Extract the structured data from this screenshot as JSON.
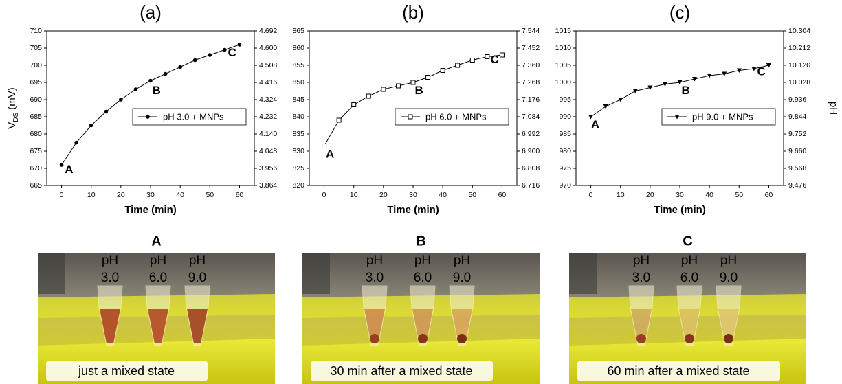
{
  "chart_data": [
    {
      "type": "line",
      "title": "(a)",
      "x_label": "Time (min)",
      "y_label": [
        "V",
        "DS",
        " (mV)"
      ],
      "x": [
        0,
        5,
        10,
        15,
        20,
        25,
        30,
        35,
        40,
        45,
        50,
        55,
        60
      ],
      "xlim": [
        -5,
        65
      ],
      "xticks": [
        0,
        10,
        20,
        30,
        40,
        50,
        60
      ],
      "ylim": [
        665,
        710
      ],
      "yticks": [
        665,
        670,
        675,
        680,
        685,
        690,
        695,
        700,
        705,
        710
      ],
      "y2lim": [
        3.864,
        4.692
      ],
      "y2ticks": [
        3.864,
        3.956,
        4.048,
        {
          "value": 4.14,
          "label": "4.140"
        },
        4.232,
        4.324,
        4.416,
        4.508,
        {
          "value": 4.6,
          "label": "4.600"
        },
        4.692
      ],
      "legend": "right",
      "series": [
        {
          "name": "pH 3.0 + MNPs",
          "color": "#000000",
          "marker": "circle",
          "values": [
            671,
            677.5,
            682.5,
            686.5,
            690,
            693,
            695.5,
            697.5,
            699.5,
            701.5,
            703,
            704.5,
            706
          ]
        }
      ],
      "annotations": [
        {
          "text": "A",
          "x": 2.5,
          "y": 669.5
        },
        {
          "text": "B",
          "x": 32,
          "y": 692.5
        },
        {
          "text": "C",
          "x": 57.5,
          "y": 703.5
        }
      ]
    },
    {
      "type": "line",
      "title": "(b)",
      "x_label": "Time (min)",
      "x": [
        0,
        5,
        10,
        15,
        20,
        25,
        30,
        35,
        40,
        45,
        50,
        55,
        60
      ],
      "xlim": [
        -5,
        65
      ],
      "xticks": [
        0,
        10,
        20,
        30,
        40,
        50,
        60
      ],
      "ylim": [
        820,
        865
      ],
      "yticks": [
        820,
        825,
        830,
        835,
        840,
        845,
        850,
        855,
        860,
        865
      ],
      "y2lim": [
        6.716,
        7.544
      ],
      "y2ticks": [
        6.716,
        6.808,
        {
          "value": 6.9,
          "label": "6.900"
        },
        6.992,
        7.084,
        7.176,
        7.268,
        {
          "value": 7.36,
          "label": "7.360"
        },
        7.452,
        7.544
      ],
      "legend": "right",
      "series": [
        {
          "name": "pH 6.0 + MNPs",
          "color": "#000000",
          "marker": "square-open",
          "values": [
            831.5,
            839,
            843.5,
            846,
            848,
            849,
            850,
            851.5,
            853.5,
            855,
            856.5,
            857.5,
            858
          ]
        }
      ],
      "annotations": [
        {
          "text": "A",
          "x": 2,
          "y": 829
        },
        {
          "text": "B",
          "x": 32,
          "y": 847.5
        },
        {
          "text": "C",
          "x": 57.5,
          "y": 856.5
        }
      ]
    },
    {
      "type": "line",
      "title": "(c)",
      "x_label": "Time (min)",
      "y2_label": "pH",
      "x": [
        0,
        5,
        10,
        15,
        20,
        25,
        30,
        35,
        40,
        45,
        50,
        55,
        60
      ],
      "xlim": [
        -5,
        65
      ],
      "xticks": [
        0,
        10,
        20,
        30,
        40,
        50,
        60
      ],
      "ylim": [
        970,
        1015
      ],
      "yticks": [
        970,
        975,
        980,
        985,
        990,
        995,
        1000,
        1005,
        1010,
        1015
      ],
      "y2lim": [
        9.476,
        10.304
      ],
      "y2ticks": [
        9.476,
        9.568,
        {
          "value": 9.66,
          "label": "9.660"
        },
        9.752,
        9.844,
        9.936,
        10.028,
        {
          "value": 10.12,
          "label": "10.120"
        },
        10.212,
        10.304
      ],
      "legend": "right",
      "series": [
        {
          "name": "pH 9.0 + MNPs",
          "color": "#000000",
          "marker": "triangle-down",
          "values": [
            990,
            993,
            995,
            997.5,
            998.5,
            999.5,
            1000,
            1001,
            1002,
            1002.5,
            1003.5,
            1004,
            1005
          ]
        }
      ],
      "annotations": [
        {
          "text": "A",
          "x": 1.5,
          "y": 987.5
        },
        {
          "text": "B",
          "x": 32,
          "y": 997.5
        },
        {
          "text": "C",
          "x": 57.5,
          "y": 1003
        }
      ]
    }
  ],
  "photos": [
    {
      "title": "A",
      "tubes": [
        [
          "pH",
          "3.0"
        ],
        [
          "pH",
          "6.0"
        ],
        [
          "pH",
          "9.0"
        ]
      ],
      "caption": "just a mixed state"
    },
    {
      "title": "B",
      "tubes": [
        [
          "pH",
          "3.0"
        ],
        [
          "pH",
          "6.0"
        ],
        [
          "pH",
          "9.0"
        ]
      ],
      "caption": "30 min after a mixed state"
    },
    {
      "title": "C",
      "tubes": [
        [
          "pH",
          "3.0"
        ],
        [
          "pH",
          "6.0"
        ],
        [
          "pH",
          "9.0"
        ]
      ],
      "caption": "60 min after a mixed state"
    }
  ]
}
